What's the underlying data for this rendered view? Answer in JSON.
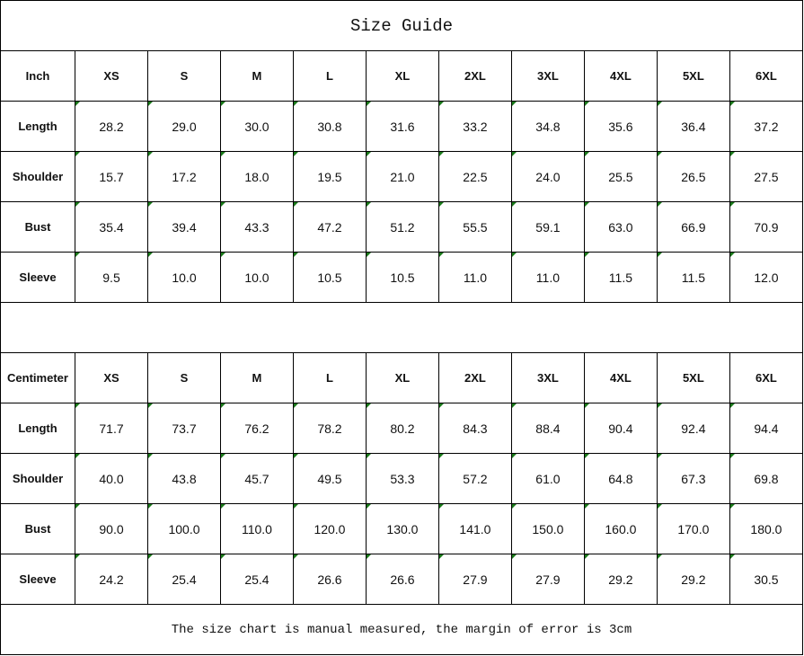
{
  "title": "Size Guide",
  "sizes": [
    "XS",
    "S",
    "M",
    "L",
    "XL",
    "2XL",
    "3XL",
    "4XL",
    "5XL",
    "6XL"
  ],
  "inch": {
    "header": "Inch",
    "rows": [
      {
        "label": "Length",
        "values": [
          "28.2",
          "29.0",
          "30.0",
          "30.8",
          "31.6",
          "33.2",
          "34.8",
          "35.6",
          "36.4",
          "37.2"
        ]
      },
      {
        "label": "Shoulder",
        "values": [
          "15.7",
          "17.2",
          "18.0",
          "19.5",
          "21.0",
          "22.5",
          "24.0",
          "25.5",
          "26.5",
          "27.5"
        ]
      },
      {
        "label": "Bust",
        "values": [
          "35.4",
          "39.4",
          "43.3",
          "47.2",
          "51.2",
          "55.5",
          "59.1",
          "63.0",
          "66.9",
          "70.9"
        ]
      },
      {
        "label": "Sleeve",
        "values": [
          "9.5",
          "10.0",
          "10.0",
          "10.5",
          "10.5",
          "11.0",
          "11.0",
          "11.5",
          "11.5",
          "12.0"
        ]
      }
    ]
  },
  "centimeter": {
    "header": "Centimeter",
    "rows": [
      {
        "label": "Length",
        "values": [
          "71.7",
          "73.7",
          "76.2",
          "78.2",
          "80.2",
          "84.3",
          "88.4",
          "90.4",
          "92.4",
          "94.4"
        ]
      },
      {
        "label": "Shoulder",
        "values": [
          "40.0",
          "43.8",
          "45.7",
          "49.5",
          "53.3",
          "57.2",
          "61.0",
          "64.8",
          "67.3",
          "69.8"
        ]
      },
      {
        "label": "Bust",
        "values": [
          "90.0",
          "100.0",
          "110.0",
          "120.0",
          "130.0",
          "141.0",
          "150.0",
          "160.0",
          "170.0",
          "180.0"
        ]
      },
      {
        "label": "Sleeve",
        "values": [
          "24.2",
          "25.4",
          "25.4",
          "26.6",
          "26.6",
          "27.9",
          "27.9",
          "29.2",
          "29.2",
          "30.5"
        ]
      }
    ]
  },
  "footer": "The size chart is manual measured, the margin of error is 3cm",
  "colors": {
    "border": "#000000",
    "error_indicator": "#1a7a1a"
  }
}
